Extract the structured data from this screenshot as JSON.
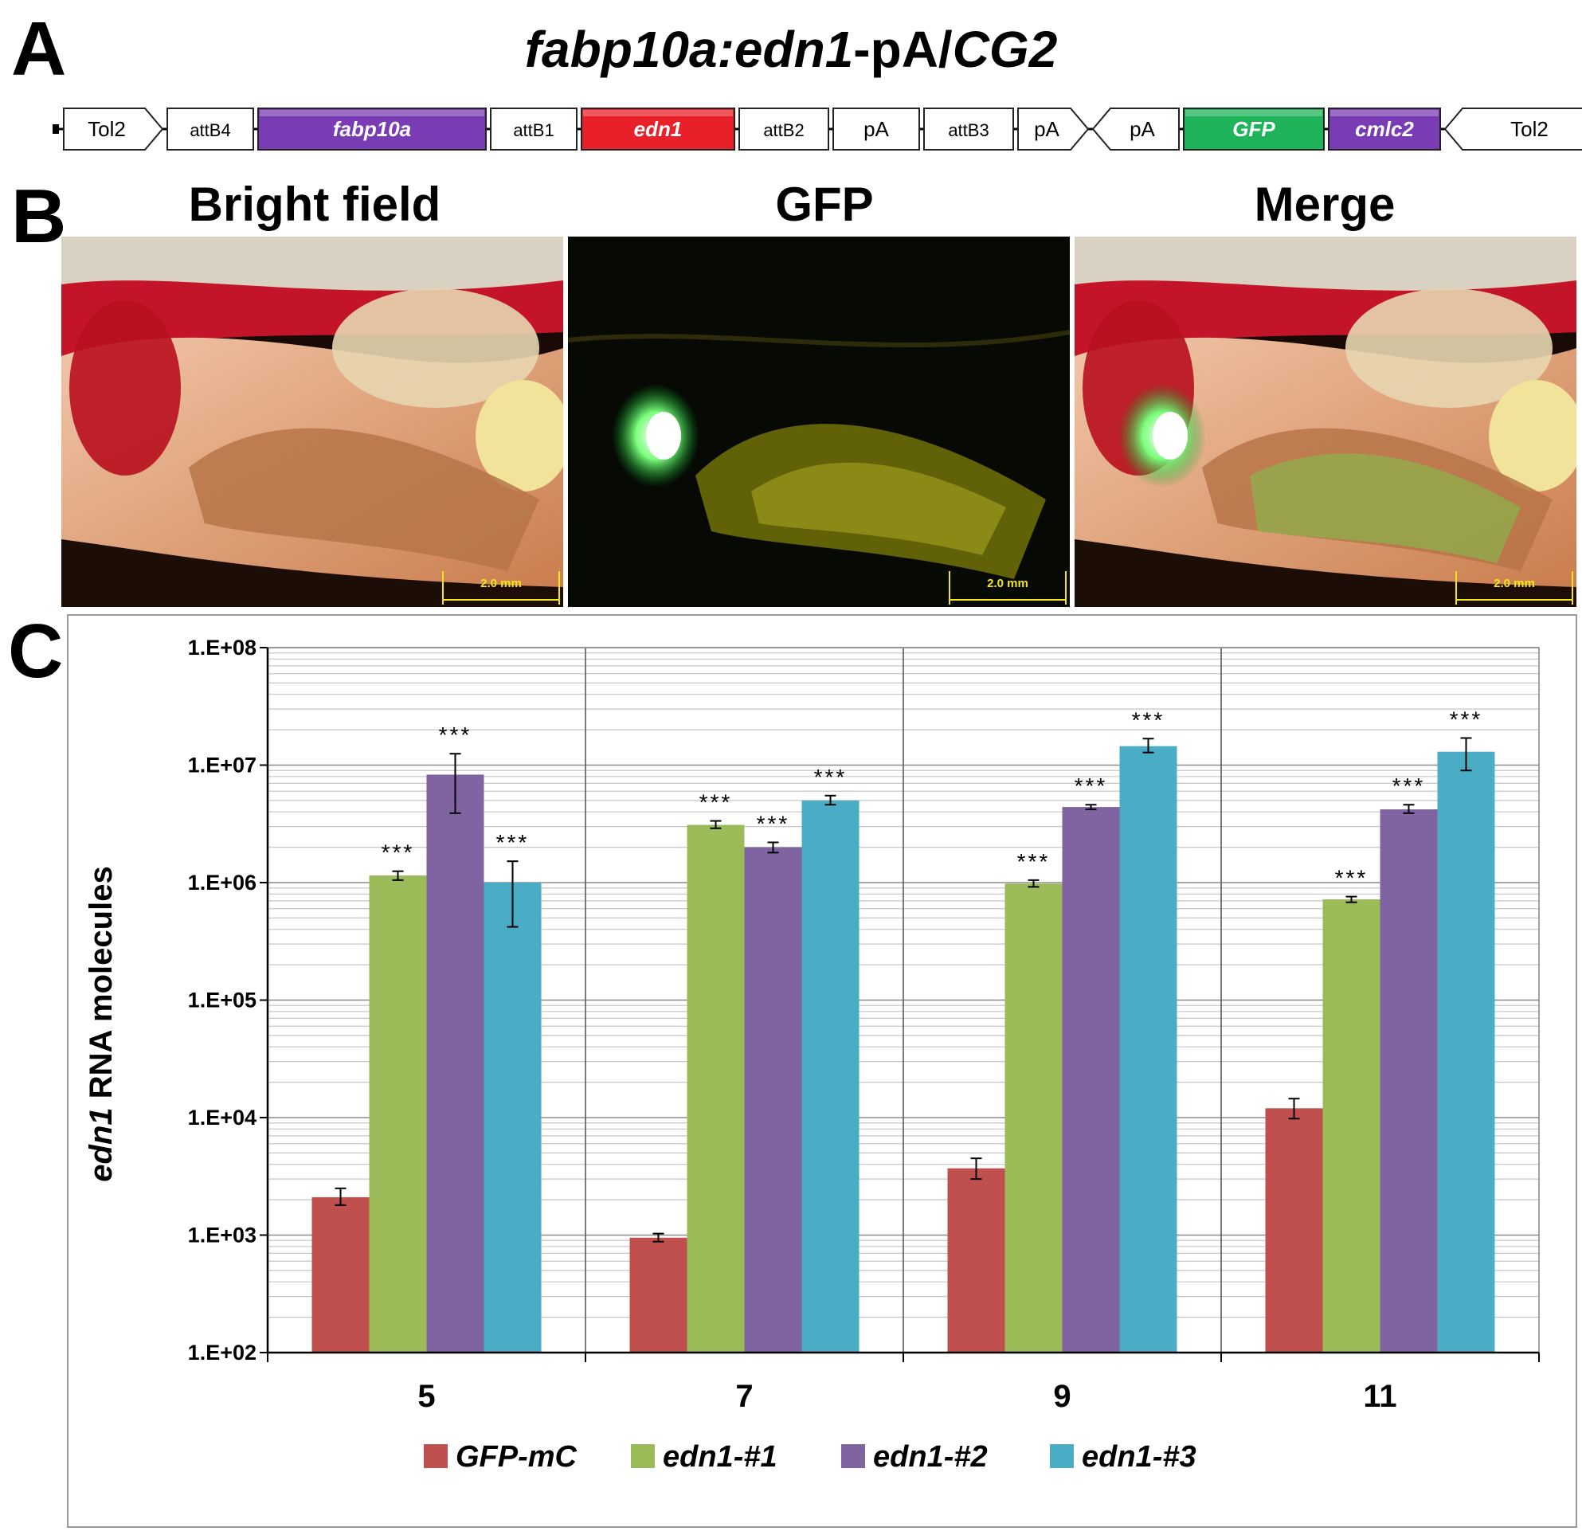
{
  "panel_a": {
    "letter": "A",
    "title": {
      "part1": "fabp10a:edn1",
      "part2": "-pA/",
      "part3": "CG2"
    },
    "elements": [
      {
        "label": "Tol2",
        "shape": "arrow-right",
        "fill": "#ffffff",
        "text_color": "#000000",
        "italic": false
      },
      {
        "label": "attB4",
        "shape": "box",
        "fill": "#ffffff",
        "text_color": "#000000",
        "italic": false
      },
      {
        "label": "fabp10a",
        "shape": "box",
        "fill": "#7a3cb5",
        "text_color": "#ffffff",
        "italic": true
      },
      {
        "label": "attB1",
        "shape": "box",
        "fill": "#ffffff",
        "text_color": "#000000",
        "italic": false
      },
      {
        "label": "edn1",
        "shape": "box",
        "fill": "#e8202a",
        "text_color": "#ffffff",
        "italic": true
      },
      {
        "label": "attB2",
        "shape": "box",
        "fill": "#ffffff",
        "text_color": "#000000",
        "italic": false
      },
      {
        "label": "pA",
        "shape": "box",
        "fill": "#ffffff",
        "text_color": "#000000",
        "italic": false
      },
      {
        "label": "attB3",
        "shape": "box",
        "fill": "#ffffff",
        "text_color": "#000000",
        "italic": false
      },
      {
        "label": "pA",
        "shape": "arrow-right",
        "fill": "#ffffff",
        "text_color": "#000000",
        "italic": false
      },
      {
        "label": "pA",
        "shape": "arrow-left",
        "fill": "#ffffff",
        "text_color": "#000000",
        "italic": false
      },
      {
        "label": "GFP",
        "shape": "box",
        "fill": "#1fb45a",
        "text_color": "#ffffff",
        "italic": true
      },
      {
        "label": "cmlc2",
        "shape": "box",
        "fill": "#7a3cb5",
        "text_color": "#ffffff",
        "italic": true
      },
      {
        "label": "Tol2",
        "shape": "arrow-left",
        "fill": "#ffffff",
        "text_color": "#000000",
        "italic": false
      }
    ]
  },
  "panel_b": {
    "letter": "B",
    "images": [
      {
        "title": "Bright field",
        "scale_bar": "2.0 mm",
        "mode": "bright"
      },
      {
        "title": "GFP",
        "scale_bar": "2.0 mm",
        "mode": "gfp"
      },
      {
        "title": "Merge",
        "scale_bar": "2.0 mm",
        "mode": "merge"
      }
    ]
  },
  "panel_c": {
    "letter": "C"
  },
  "chart_data": {
    "type": "bar",
    "title": "",
    "xlabel": "",
    "ylabel": {
      "italic_part": "edn1",
      "rest": " RNA molecules"
    },
    "y_scale": "log10",
    "ylim": [
      100,
      100000000
    ],
    "y_ticks": [
      "1.E+02",
      "1.E+03",
      "1.E+04",
      "1.E+05",
      "1.E+06",
      "1.E+07",
      "1.E+08"
    ],
    "grid": "minor and major horizontal, vertical group separators",
    "legend_position": "bottom",
    "categories": [
      "5",
      "7",
      "9",
      "11"
    ],
    "series": [
      {
        "name": "GFP-mC",
        "color": "#c0504d",
        "values": [
          2100,
          950,
          3700,
          12000
        ],
        "error_low": [
          1800,
          880,
          3000,
          9800
        ],
        "error_high": [
          2500,
          1030,
          4500,
          14500
        ],
        "significance": [
          "",
          "",
          "",
          ""
        ]
      },
      {
        "name": "edn1-#1",
        "color": "#9bbb59",
        "values": [
          1150000,
          3100000,
          980000,
          720000
        ],
        "error_low": [
          1050000,
          2900000,
          920000,
          680000
        ],
        "error_high": [
          1250000,
          3350000,
          1050000,
          760000
        ],
        "significance": [
          "***",
          "***",
          "***",
          "***"
        ]
      },
      {
        "name": "edn1-#2",
        "color": "#8064a2",
        "values": [
          8300000,
          2000000,
          4400000,
          4200000
        ],
        "error_low": [
          3900000,
          1800000,
          4200000,
          3900000
        ],
        "error_high": [
          12500000,
          2200000,
          4600000,
          4600000
        ],
        "significance": [
          "***",
          "***",
          "***",
          "***"
        ]
      },
      {
        "name": "edn1-#3",
        "color": "#4bacc6",
        "values": [
          1000000,
          5000000,
          14500000,
          13000000
        ],
        "error_low": [
          420000,
          4600000,
          12800000,
          9000000
        ],
        "error_high": [
          1520000,
          5500000,
          16800000,
          17000000
        ],
        "significance": [
          "***",
          "***",
          "***",
          "***"
        ]
      }
    ]
  }
}
